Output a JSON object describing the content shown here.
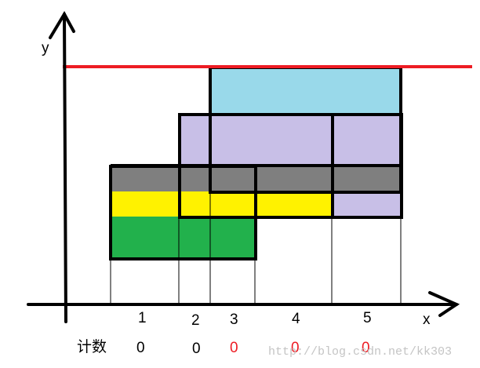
{
  "axes": {
    "x_label": "x",
    "y_label": "y"
  },
  "intervals": [
    {
      "label": "1",
      "count": "0"
    },
    {
      "label": "2",
      "count": "0"
    },
    {
      "label": "3",
      "count": "0"
    },
    {
      "label": "4",
      "count": "0"
    },
    {
      "label": "5",
      "count": "0"
    }
  ],
  "count_label": "计数",
  "watermark": "http://blog.csdn.net/kk303",
  "colors": {
    "cyan_rect": "#99d9ea",
    "purple_rect": "#c8bfe7",
    "gray_band": "#7f7f7f",
    "yellow_band": "#fff200",
    "green_band": "#22b14c",
    "scan_line": "#ed1c24",
    "count_black": "#000000",
    "count_red": "#ed1c24"
  }
}
